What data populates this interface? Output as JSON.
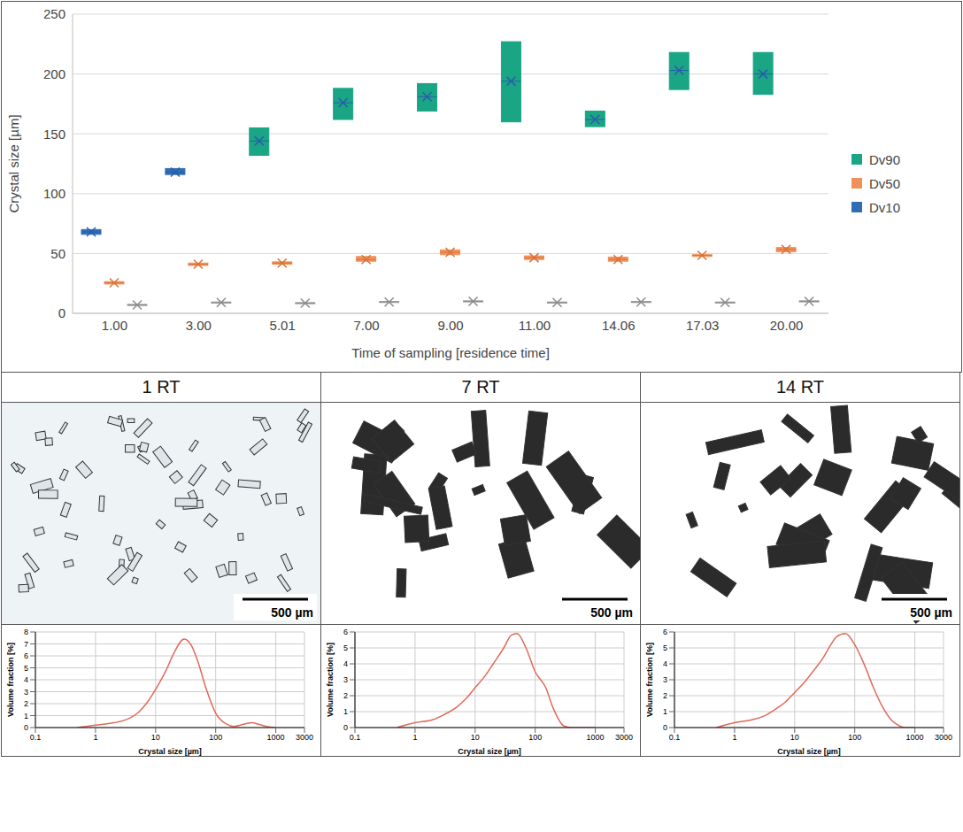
{
  "chart_data": [
    {
      "type": "box",
      "x_label": "Time of sampling [residence time]",
      "y_label": "Crystal size [µm]",
      "categories": [
        "1.00",
        "3.00",
        "5.01",
        "7.00",
        "9.00",
        "11.00",
        "14.06",
        "17.03",
        "20.00"
      ],
      "ylim": [
        0,
        250
      ],
      "yticks": [
        0,
        50,
        100,
        150,
        200,
        250
      ],
      "grid": true,
      "legend": "right",
      "series": [
        {
          "name": "Dv90",
          "color": "#1aa585",
          "colors": [
            "#2f6db5",
            "#2f6db5",
            "#1aa585",
            "#1aa585",
            "#1aa585",
            "#1aa585",
            "#1aa585",
            "#1aa585",
            "#1aa585"
          ],
          "marker": "x",
          "values": [
            68,
            118,
            144,
            176,
            181,
            194,
            162,
            203,
            200
          ],
          "low": [
            66,
            116,
            132,
            162,
            169,
            160,
            156,
            187,
            183
          ],
          "high": [
            70,
            121,
            155,
            188,
            192,
            227,
            169,
            218,
            218
          ]
        },
        {
          "name": "Dv50",
          "color": "#f0915a",
          "marker": "x",
          "values": [
            25.5,
            41,
            42,
            45,
            51,
            46.5,
            45,
            48.5,
            53.5
          ],
          "low": [
            24.5,
            40,
            41,
            43.5,
            49,
            45,
            43.5,
            47.5,
            51.5
          ],
          "high": [
            26.5,
            42,
            43,
            47.5,
            53,
            48,
            47,
            49,
            55
          ]
        },
        {
          "name": "Dv10",
          "color": "#2f6db5",
          "colors": [
            "#a6a6a6",
            "#a6a6a6",
            "#a6a6a6",
            "#a6a6a6",
            "#a6a6a6",
            "#a6a6a6",
            "#a6a6a6",
            "#a6a6a6",
            "#a6a6a6"
          ],
          "marker": "x",
          "values": [
            7,
            9,
            8.5,
            9.5,
            10,
            9,
            9.5,
            9,
            10
          ],
          "low": [
            6.5,
            8.5,
            8,
            9,
            9.5,
            8.5,
            9,
            8.5,
            9.5
          ],
          "high": [
            7.5,
            9.5,
            9,
            10,
            10.5,
            9.5,
            10,
            9.5,
            10.5
          ]
        }
      ]
    },
    {
      "type": "line",
      "title": "1 RT",
      "annotation": "500 µm",
      "x_label": "Crystal size [µm]",
      "y_label": "Volume fraction [%]",
      "log": "x",
      "grid": true,
      "xlim": [
        0.1,
        3000
      ],
      "xticks": [
        0.1,
        1,
        10,
        100,
        1000,
        3000
      ],
      "ylim": [
        0,
        8
      ],
      "yticks": [
        0,
        1,
        2,
        3,
        4,
        5,
        6,
        7,
        8
      ],
      "color": "#e06a5a",
      "x": [
        0.5,
        1,
        2,
        3,
        5,
        7,
        10,
        15,
        20,
        30,
        40,
        50,
        70,
        100,
        150,
        200,
        300,
        400,
        500,
        700,
        1000
      ],
      "values": [
        0,
        0.2,
        0.4,
        0.6,
        1.2,
        2.0,
        3.2,
        4.8,
        6.2,
        7.4,
        6.8,
        5.6,
        3.2,
        1.2,
        0.3,
        0.1,
        0.3,
        0.4,
        0.3,
        0.1,
        0
      ]
    },
    {
      "type": "line",
      "title": "7 RT",
      "annotation": "500 µm",
      "x_label": "Crystal size [µm]",
      "y_label": "Volume fraction [%]",
      "log": "x",
      "grid": true,
      "xlim": [
        0.1,
        3000
      ],
      "xticks": [
        0.1,
        1,
        10,
        100,
        1000,
        3000
      ],
      "ylim": [
        0,
        6
      ],
      "yticks": [
        0,
        1,
        2,
        3,
        4,
        5,
        6
      ],
      "color": "#e06a5a",
      "x": [
        0.5,
        1,
        2,
        3,
        5,
        7,
        10,
        15,
        20,
        30,
        40,
        50,
        70,
        100,
        150,
        200,
        300,
        400,
        500,
        700,
        1000
      ],
      "values": [
        0,
        0.3,
        0.5,
        0.8,
        1.3,
        1.8,
        2.5,
        3.3,
        4.0,
        5.0,
        5.8,
        5.9,
        5.0,
        3.5,
        2.5,
        1.2,
        0.1,
        0,
        0,
        0,
        0
      ]
    },
    {
      "type": "line",
      "title": "14 RT",
      "annotation": "500 µm",
      "x_label": "Crystal size [µm]",
      "y_label": "Volume fraction [%]",
      "log": "x",
      "grid": true,
      "xlim": [
        0.1,
        3000
      ],
      "xticks": [
        0.1,
        1,
        10,
        100,
        1000,
        3000
      ],
      "ylim": [
        0,
        6
      ],
      "yticks": [
        0,
        1,
        2,
        3,
        4,
        5,
        6
      ],
      "color": "#e06a5a",
      "x": [
        0.5,
        1,
        2,
        3,
        5,
        7,
        10,
        15,
        20,
        30,
        40,
        50,
        70,
        100,
        150,
        200,
        300,
        400,
        500,
        700,
        1000
      ],
      "values": [
        0,
        0.3,
        0.5,
        0.7,
        1.2,
        1.6,
        2.2,
        2.9,
        3.5,
        4.4,
        5.2,
        5.7,
        5.9,
        5.2,
        3.8,
        2.6,
        1.2,
        0.5,
        0.2,
        0,
        0
      ]
    }
  ]
}
